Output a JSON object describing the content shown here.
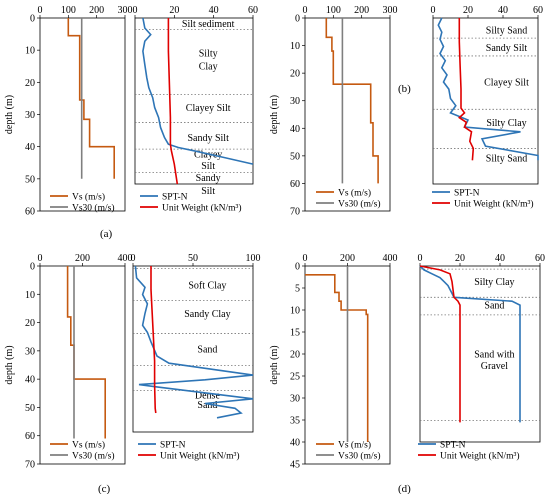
{
  "colors": {
    "vs": "#c55a11",
    "vs30": "#7f7f7f",
    "spt": "#2e75b6",
    "uw": "#e00000"
  },
  "panel_labels": [
    "(a)",
    "(b)",
    "(c)",
    "(d)"
  ],
  "chart_data": [
    {
      "id": "a-vs",
      "type": "line",
      "xlim": [
        0,
        300
      ],
      "ylim": [
        60,
        0
      ],
      "xticks": [
        "0",
        "100",
        "200",
        "300"
      ],
      "yticks": [
        "0",
        "10",
        "20",
        "30",
        "40",
        "50",
        "60"
      ],
      "ylabel": "depth (m)",
      "series": [
        {
          "name": "Vs (m/s)",
          "color_key": "vs",
          "points": [
            [
              100,
              0
            ],
            [
              100,
              5.5
            ],
            [
              140,
              5.5
            ],
            [
              140,
              25.5
            ],
            [
              155,
              25.5
            ],
            [
              155,
              31.5
            ],
            [
              175,
              31.5
            ],
            [
              175,
              40
            ],
            [
              262,
              40
            ],
            [
              262,
              50
            ]
          ]
        },
        {
          "name": "Vs30 (m/s)",
          "color_key": "vs30",
          "points": [
            [
              147,
              0
            ],
            [
              147,
              50
            ]
          ]
        }
      ]
    },
    {
      "id": "a-spt",
      "type": "line",
      "xlim": [
        0,
        60
      ],
      "ylim": [
        50,
        0
      ],
      "xticks": [
        "0",
        "20",
        "40",
        "60"
      ],
      "series": [
        {
          "name": "SPT-N",
          "color_key": "spt",
          "points": [
            [
              4,
              0
            ],
            [
              5,
              3
            ],
            [
              8,
              5
            ],
            [
              5,
              7
            ],
            [
              4,
              10
            ],
            [
              5,
              14
            ],
            [
              6,
              18
            ],
            [
              7,
              21
            ],
            [
              9,
              24
            ],
            [
              10,
              27
            ],
            [
              12,
              30
            ],
            [
              13,
              33
            ],
            [
              15,
              36
            ],
            [
              17,
              38
            ],
            [
              22,
              39
            ],
            [
              30,
              40
            ],
            [
              45,
              42
            ],
            [
              60,
              44
            ]
          ]
        },
        {
          "name": "Unit Weight (kN/m³)",
          "color_key": "uw",
          "points": [
            [
              17,
              0
            ],
            [
              17,
              10
            ],
            [
              17.5,
              20
            ],
            [
              18,
              30
            ],
            [
              18,
              38
            ],
            [
              18.5,
              40
            ],
            [
              20,
              44
            ],
            [
              21,
              48
            ],
            [
              21.5,
              50
            ]
          ]
        }
      ],
      "layers": [
        {
          "label": "Silt sediment",
          "y": 1.7
        },
        {
          "label": "Silty",
          "y": 10.5
        },
        {
          "label": "Clay",
          "y": 14.5
        },
        {
          "label": "Clayey Silt",
          "y": 27
        },
        {
          "label": "Sandy Silt",
          "y": 36
        },
        {
          "label": "Clayey",
          "y": 41
        },
        {
          "label": "Silt",
          "y": 44.5
        },
        {
          "label": "Sandy",
          "y": 48
        },
        {
          "label": "Silt",
          "y": 52
        }
      ],
      "boundaries": [
        3.5,
        23,
        31.5,
        39.5,
        46.5
      ]
    },
    {
      "id": "b-vs",
      "type": "line",
      "xlim": [
        0,
        300
      ],
      "ylim": [
        70,
        0
      ],
      "xticks": [
        "0",
        "100",
        "200",
        "300"
      ],
      "yticks": [
        "0",
        "10",
        "20",
        "30",
        "40",
        "50",
        "60",
        "70"
      ],
      "ylabel": "depth (m)",
      "series": [
        {
          "name": "Vs (m/s)",
          "color_key": "vs",
          "points": [
            [
              75,
              0
            ],
            [
              75,
              7
            ],
            [
              95,
              7
            ],
            [
              95,
              12
            ],
            [
              100,
              12
            ],
            [
              100,
              24
            ],
            [
              232,
              24
            ],
            [
              232,
              38
            ],
            [
              240,
              38
            ],
            [
              240,
              50
            ],
            [
              258,
              50
            ],
            [
              258,
              60
            ]
          ]
        },
        {
          "name": "Vs30 (m/s)",
          "color_key": "vs30",
          "points": [
            [
              132,
              0
            ],
            [
              132,
              60
            ]
          ]
        }
      ]
    },
    {
      "id": "b-spt",
      "type": "line",
      "xlim": [
        0,
        60
      ],
      "ylim": [
        70,
        0
      ],
      "xticks": [
        "0",
        "20",
        "40",
        "60"
      ],
      "series": [
        {
          "name": "SPT-N",
          "color_key": "spt",
          "points": [
            [
              5,
              0
            ],
            [
              3,
              3
            ],
            [
              5,
              6
            ],
            [
              4,
              9
            ],
            [
              6,
              12
            ],
            [
              4,
              15
            ],
            [
              7,
              18
            ],
            [
              5,
              21
            ],
            [
              8,
              24
            ],
            [
              6,
              27
            ],
            [
              9,
              30
            ],
            [
              10,
              34
            ],
            [
              13,
              37
            ],
            [
              10,
              40
            ],
            [
              20,
              43
            ],
            [
              18,
              46
            ],
            [
              50,
              48
            ],
            [
              28,
              51
            ],
            [
              30,
              54
            ],
            [
              60,
              58
            ],
            [
              60,
              60
            ]
          ]
        },
        {
          "name": "Unit Weight (kN/m³)",
          "color_key": "uw",
          "points": [
            [
              15,
              0
            ],
            [
              15,
              10
            ],
            [
              15.5,
              20
            ],
            [
              16,
              30
            ],
            [
              16,
              38
            ],
            [
              18,
              40
            ],
            [
              15,
              42
            ],
            [
              19,
              44
            ],
            [
              18,
              46
            ],
            [
              22,
              48
            ],
            [
              21,
              52
            ],
            [
              23,
              55
            ],
            [
              22.5,
              60
            ]
          ]
        }
      ],
      "layers": [
        {
          "label": "Silty Sand",
          "y": 5
        },
        {
          "label": "Sandy Silt",
          "y": 12.5
        },
        {
          "label": "Clayey Silt",
          "y": 27
        },
        {
          "label": "Silty Clay",
          "y": 44
        },
        {
          "label": "Silty Sand",
          "y": 59
        }
      ],
      "boundaries": [
        8.5,
        16,
        38.5,
        55
      ]
    },
    {
      "id": "c-vs",
      "type": "line",
      "xlim": [
        0,
        400
      ],
      "ylim": [
        70,
        0
      ],
      "xticks": [
        "0",
        "200",
        "400"
      ],
      "yticks": [
        "0",
        "10",
        "20",
        "30",
        "40",
        "50",
        "60",
        "70"
      ],
      "ylabel": "depth (m)",
      "series": [
        {
          "name": "Vs (m/s)",
          "color_key": "vs",
          "points": [
            [
              130,
              0
            ],
            [
              130,
              18
            ],
            [
              145,
              18
            ],
            [
              145,
              28
            ],
            [
              160,
              28
            ],
            [
              160,
              40
            ],
            [
              307,
              40
            ],
            [
              307,
              61
            ]
          ]
        },
        {
          "name": "Vs30 (m/s)",
          "color_key": "vs30",
          "points": [
            [
              160,
              0
            ],
            [
              160,
              61
            ]
          ]
        }
      ]
    },
    {
      "id": "c-spt",
      "type": "line",
      "xlim": [
        0,
        100
      ],
      "ylim": [
        70,
        0
      ],
      "xticks": [
        "0",
        "50",
        "100"
      ],
      "series": [
        {
          "name": "SPT-N",
          "color_key": "spt",
          "points": [
            [
              2,
              0
            ],
            [
              3,
              5
            ],
            [
              10,
              9
            ],
            [
              8,
              12
            ],
            [
              12,
              16
            ],
            [
              10,
              20
            ],
            [
              8,
              25
            ],
            [
              12,
              28
            ],
            [
              15,
              32
            ],
            [
              20,
              38
            ],
            [
              30,
              41
            ],
            [
              100,
              46
            ],
            [
              60,
              48
            ],
            [
              5,
              50
            ],
            [
              20,
              51
            ],
            [
              100,
              56
            ],
            [
              60,
              58
            ],
            [
              85,
              60
            ],
            [
              90,
              62
            ],
            [
              70,
              64
            ]
          ]
        },
        {
          "name": "Unit Weight (kN/m³)",
          "color_key": "uw",
          "points": [
            [
              15,
              0
            ],
            [
              15,
              10
            ],
            [
              16,
              20
            ],
            [
              17,
              30
            ],
            [
              18,
              40
            ],
            [
              18,
              50
            ],
            [
              18.5,
              60
            ],
            [
              19,
              62
            ]
          ]
        }
      ],
      "layers": [
        {
          "label": "Soft Clay",
          "y": 8
        },
        {
          "label": "Sandy Clay",
          "y": 20
        },
        {
          "label": "Sand",
          "y": 35
        },
        {
          "label": "Dense",
          "y": 54.5
        },
        {
          "label": "Sand",
          "y": 58.5
        }
      ],
      "boundaries": [
        1,
        14.5,
        28.5,
        42,
        52.5
      ]
    },
    {
      "id": "d-vs",
      "type": "line",
      "xlim": [
        0,
        400
      ],
      "ylim": [
        45,
        0
      ],
      "xticks": [
        "0",
        "200",
        "400"
      ],
      "yticks": [
        "0",
        "5",
        "10",
        "15",
        "20",
        "25",
        "30",
        "35",
        "40",
        "45"
      ],
      "ylabel": "depth (m)",
      "series": [
        {
          "name": "Vs (m/s)",
          "color_key": "vs",
          "points": [
            [
              0,
              2
            ],
            [
              140,
              2
            ],
            [
              140,
              6
            ],
            [
              160,
              6
            ],
            [
              160,
              8
            ],
            [
              170,
              8
            ],
            [
              170,
              10
            ],
            [
              288,
              10
            ],
            [
              288,
              11
            ],
            [
              295,
              11
            ],
            [
              295,
              40
            ]
          ]
        },
        {
          "name": "Vs30 (m/s)",
          "color_key": "vs30",
          "points": [
            [
              200,
              0
            ],
            [
              200,
              40
            ]
          ]
        }
      ]
    },
    {
      "id": "d-spt",
      "type": "line",
      "xlim": [
        0,
        60
      ],
      "ylim": [
        45,
        0
      ],
      "xticks": [
        "0",
        "20",
        "40",
        "60"
      ],
      "series": [
        {
          "name": "SPT-N",
          "color_key": "spt",
          "points": [
            [
              0,
              0
            ],
            [
              2,
              1
            ],
            [
              6,
              2
            ],
            [
              10,
              3
            ],
            [
              12,
              4
            ],
            [
              14,
              5
            ],
            [
              15,
              6
            ],
            [
              16,
              7
            ],
            [
              17,
              8
            ],
            [
              46,
              9
            ],
            [
              50,
              10
            ],
            [
              50,
              12
            ],
            [
              50,
              40
            ]
          ]
        },
        {
          "name": "Unit Weight (kN/m³)",
          "color_key": "uw",
          "points": [
            [
              0,
              0
            ],
            [
              10,
              1
            ],
            [
              15,
              2
            ],
            [
              16,
              4
            ],
            [
              17,
              8
            ],
            [
              19,
              9
            ],
            [
              20,
              10
            ],
            [
              20,
              40
            ]
          ]
        }
      ],
      "layers": [
        {
          "label": "Silty Clay",
          "y": 4
        },
        {
          "label": "Sand",
          "y": 10
        },
        {
          "label": "Sand with",
          "y": 22.5
        },
        {
          "label": "Gravel",
          "y": 25.5
        }
      ],
      "boundaries": [
        0.8,
        8,
        12.5,
        39.5
      ]
    }
  ]
}
